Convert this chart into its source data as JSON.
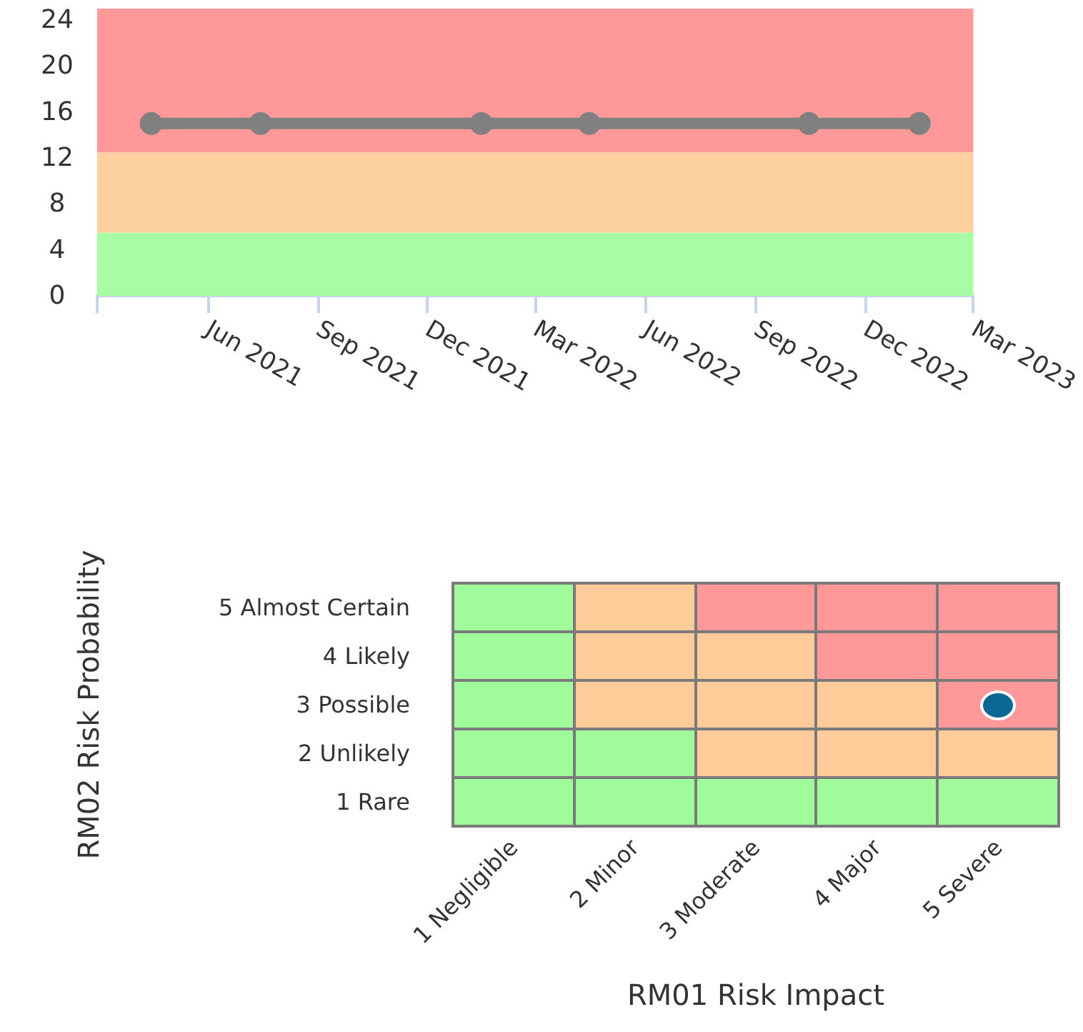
{
  "chart_data": [
    {
      "type": "line",
      "x": [
        "2021-04-15",
        "2021-07-15",
        "2022-01-15",
        "2022-04-15",
        "2022-10-15",
        "2023-01-15"
      ],
      "series": [
        {
          "color": "#808080",
          "values": [
            15,
            15,
            15,
            15,
            15,
            15
          ]
        }
      ],
      "xlim": [
        "2021-03-01",
        "2023-03-01"
      ],
      "xticks": [
        {
          "value": "2021-03-01",
          "label": null
        },
        {
          "value": "2021-06-01",
          "label": "Jun 2021"
        },
        {
          "value": "2021-09-01",
          "label": "Sep 2021"
        },
        {
          "value": "2021-12-01",
          "label": "Dec 2021"
        },
        {
          "value": "2022-03-01",
          "label": "Mar 2022"
        },
        {
          "value": "2022-06-01",
          "label": "Jun 2022"
        },
        {
          "value": "2022-09-01",
          "label": "Sep 2022"
        },
        {
          "value": "2022-12-01",
          "label": "Dec 2022"
        },
        {
          "value": "2023-03-01",
          "label": "Mar 2023"
        }
      ],
      "ylim": [
        0,
        25
      ],
      "yticks": [
        0,
        4,
        8,
        12,
        16,
        20,
        24
      ],
      "bands": [
        {
          "axis": "y",
          "from": 0,
          "to": 5.5,
          "color": "#a8fca4"
        },
        {
          "axis": "y",
          "from": 5.5,
          "to": 12.5,
          "color": "#fdd09f"
        },
        {
          "axis": "y",
          "from": 12.5,
          "to": 25,
          "color": "#ff9999"
        }
      ],
      "marker": "circle",
      "line_style": "solid",
      "grid": false
    },
    {
      "type": "other",
      "xlabel": "RM01 Risk Impact",
      "ylabel": "RM02 Risk Probability",
      "categories": [
        "1 Negligible",
        "2 Minor",
        "3 Moderate",
        "4 Major",
        "5 Severe"
      ],
      "y_categories": [
        "5 Almost Certain",
        "4 Likely",
        "3 Possible",
        "2 Unlikely",
        "1 Rare"
      ],
      "colors": [
        [
          "#a0fc9a",
          "#ffcc99",
          "#ff9999",
          "#ff9999",
          "#ff9999"
        ],
        [
          "#a0fc9a",
          "#ffcc99",
          "#ffcc99",
          "#ff9999",
          "#ff9999"
        ],
        [
          "#a0fc9a",
          "#ffcc99",
          "#ffcc99",
          "#ffcc99",
          "#ff9999"
        ],
        [
          "#a0fc9a",
          "#a0fc9a",
          "#ffcc99",
          "#ffcc99",
          "#ffcc99"
        ],
        [
          "#a0fc9a",
          "#a0fc9a",
          "#a0fc9a",
          "#a0fc9a",
          "#a0fc9a"
        ]
      ],
      "annotations": [
        {
          "x": "5 Severe",
          "y": "3 Possible"
        }
      ]
    }
  ]
}
